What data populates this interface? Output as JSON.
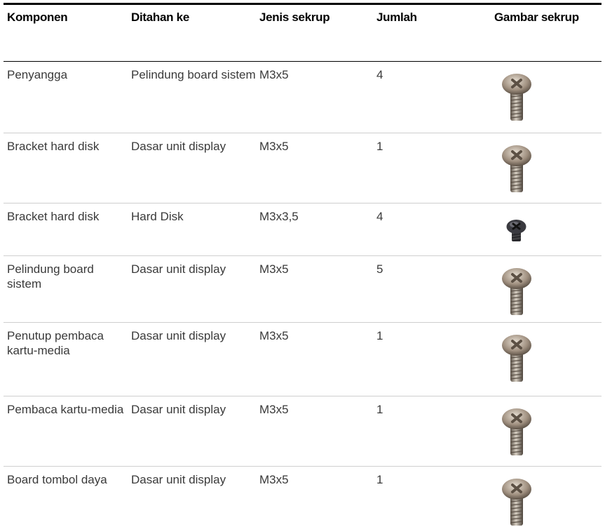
{
  "table": {
    "headers": [
      "Komponen",
      "Ditahan ke",
      "Jenis sekrup",
      "Jumlah",
      "Gambar sekrup"
    ],
    "rows": [
      [
        "Penyangga",
        "Pelindung board sistem",
        "M3x5",
        "4"
      ],
      [
        "Bracket hard disk",
        "Dasar unit display",
        "M3x5",
        "1"
      ],
      [
        "Bracket hard disk",
        "Hard Disk",
        "M3x3,5",
        "4"
      ],
      [
        "Pelindung board sistem",
        "Dasar unit display",
        "M3x5",
        "5"
      ],
      [
        "Penutup pembaca kartu-media",
        "Dasar unit display",
        "M3x5",
        "1"
      ],
      [
        "Pembaca kartu-media",
        "Dasar unit display",
        "M3x5",
        "1"
      ],
      [
        "Board tombol daya",
        "Dasar unit display",
        "M3x5",
        "1"
      ]
    ]
  }
}
